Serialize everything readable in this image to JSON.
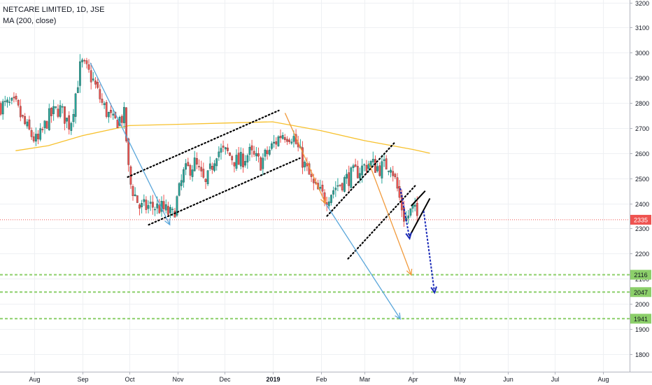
{
  "legend": {
    "symbol": "NETCARE LIMITED, 1D, JSE",
    "indicator": "MA (200, close)"
  },
  "colors": {
    "up": "#26a69a",
    "down": "#ef5350",
    "ma": "#f7c12d",
    "last_price": "#ef5350",
    "support": "#8ccf6a",
    "arrow_blue": "#5aa6da",
    "arrow_orange": "#f19a3c",
    "arrow_navy": "#1a2ab8",
    "grid": "#eef0f3"
  },
  "chart_data": {
    "type": "candlestick",
    "title": "NETCARE LIMITED, 1D, JSE",
    "x_ticks": [
      "Aug",
      "Sep",
      "Oct",
      "Nov",
      "Dec",
      "2019",
      "Feb",
      "Mar",
      "Apr",
      "May",
      "Jun",
      "Jul",
      "Aug"
    ],
    "y_ticks": [
      1800,
      1900,
      2000,
      2100,
      2200,
      2300,
      2400,
      2500,
      2600,
      2700,
      2800,
      2900,
      3000,
      3100,
      3200
    ],
    "ylim": [
      1730,
      3210
    ],
    "price_path": [
      {
        "date": "2018-07-20",
        "close": 2790
      },
      {
        "date": "2018-07-27",
        "close": 2700
      },
      {
        "date": "2018-08-03",
        "close": 2640
      },
      {
        "date": "2018-08-10",
        "close": 2740
      },
      {
        "date": "2018-08-17",
        "close": 2780
      },
      {
        "date": "2018-08-24",
        "close": 2710
      },
      {
        "date": "2018-08-31",
        "close": 2960
      },
      {
        "date": "2018-09-07",
        "close": 2900
      },
      {
        "date": "2018-09-14",
        "close": 2790
      },
      {
        "date": "2018-09-21",
        "close": 2720
      },
      {
        "date": "2018-09-28",
        "close": 2750
      },
      {
        "date": "2018-10-01",
        "close": 2490
      },
      {
        "date": "2018-10-08",
        "close": 2380
      },
      {
        "date": "2018-10-15",
        "close": 2390
      },
      {
        "date": "2018-10-22",
        "close": 2380
      },
      {
        "date": "2018-10-29",
        "close": 2350
      },
      {
        "date": "2018-11-05",
        "close": 2520
      },
      {
        "date": "2018-11-12",
        "close": 2560
      },
      {
        "date": "2018-11-19",
        "close": 2470
      },
      {
        "date": "2018-11-26",
        "close": 2610
      },
      {
        "date": "2018-12-03",
        "close": 2600
      },
      {
        "date": "2018-12-10",
        "close": 2560
      },
      {
        "date": "2018-12-17",
        "close": 2600
      },
      {
        "date": "2018-12-24",
        "close": 2560
      },
      {
        "date": "2018-12-31",
        "close": 2620
      },
      {
        "date": "2019-01-07",
        "close": 2680
      },
      {
        "date": "2019-01-14",
        "close": 2670
      },
      {
        "date": "2019-01-21",
        "close": 2560
      },
      {
        "date": "2019-01-28",
        "close": 2460
      },
      {
        "date": "2019-02-04",
        "close": 2420
      },
      {
        "date": "2019-02-11",
        "close": 2470
      },
      {
        "date": "2019-02-18",
        "close": 2500
      },
      {
        "date": "2019-02-25",
        "close": 2530
      },
      {
        "date": "2019-03-04",
        "close": 2560
      },
      {
        "date": "2019-03-11",
        "close": 2540
      },
      {
        "date": "2019-03-18",
        "close": 2560
      },
      {
        "date": "2019-03-22",
        "close": 2460
      },
      {
        "date": "2019-03-27",
        "close": 2330
      },
      {
        "date": "2019-04-01",
        "close": 2380
      },
      {
        "date": "2019-04-05",
        "close": 2335
      }
    ],
    "series": [
      {
        "name": "MA (200, close)",
        "points": [
          {
            "date": "2018-07-20",
            "value": 2610
          },
          {
            "date": "2018-08-10",
            "value": 2630
          },
          {
            "date": "2018-09-01",
            "value": 2670
          },
          {
            "date": "2018-10-01",
            "value": 2710
          },
          {
            "date": "2018-11-01",
            "value": 2715
          },
          {
            "date": "2018-12-01",
            "value": 2720
          },
          {
            "date": "2019-01-01",
            "value": 2725
          },
          {
            "date": "2019-02-01",
            "value": 2690
          },
          {
            "date": "2019-03-01",
            "value": 2650
          },
          {
            "date": "2019-04-01",
            "value": 2615
          },
          {
            "date": "2019-04-12",
            "value": 2600
          }
        ]
      }
    ],
    "last_price_label": "2335",
    "support_levels": [
      {
        "label": "2116",
        "value": 2116
      },
      {
        "label": "2047",
        "value": 2047
      },
      {
        "label": "1941",
        "value": 1941
      }
    ],
    "channels": [
      {
        "from": {
          "date": "2018-09-30",
          "value": 2505
        },
        "to": {
          "date": "2019-01-05",
          "value": 2770
        },
        "offset": 190
      },
      {
        "from": {
          "date": "2019-02-05",
          "value": 2350
        },
        "to": {
          "date": "2019-03-20",
          "value": 2640
        },
        "offset": 170
      }
    ],
    "flag": {
      "upper": [
        {
          "date": "2019-03-31",
          "value": 2390
        },
        {
          "date": "2019-04-09",
          "value": 2450
        }
      ],
      "lower": [
        {
          "date": "2019-03-30",
          "value": 2270
        },
        {
          "date": "2019-04-12",
          "value": 2420
        }
      ]
    },
    "arrows": [
      {
        "style": "blue",
        "from": {
          "date": "2018-09-06",
          "value": 2960
        },
        "to": {
          "date": "2018-10-27",
          "value": 2315
        },
        "dashed": false
      },
      {
        "style": "blue",
        "from": {
          "date": "2019-02-04",
          "value": 2400
        },
        "to": {
          "date": "2019-03-24",
          "value": 1940
        },
        "dashed": false
      },
      {
        "style": "orange",
        "from": {
          "date": "2019-01-09",
          "value": 2760
        },
        "to": {
          "date": "2019-02-04",
          "value": 2400
        },
        "dashed": false
      },
      {
        "style": "orange",
        "from": {
          "date": "2019-03-04",
          "value": 2560
        },
        "to": {
          "date": "2019-03-31",
          "value": 2115
        },
        "dashed": false
      },
      {
        "style": "navy",
        "from": {
          "date": "2019-03-24",
          "value": 2460
        },
        "to": {
          "date": "2019-03-30",
          "value": 2260
        },
        "dashed": true
      },
      {
        "style": "navy",
        "from": {
          "date": "2019-04-08",
          "value": 2370
        },
        "to": {
          "date": "2019-04-15",
          "value": 2045
        },
        "dashed": true
      }
    ]
  }
}
